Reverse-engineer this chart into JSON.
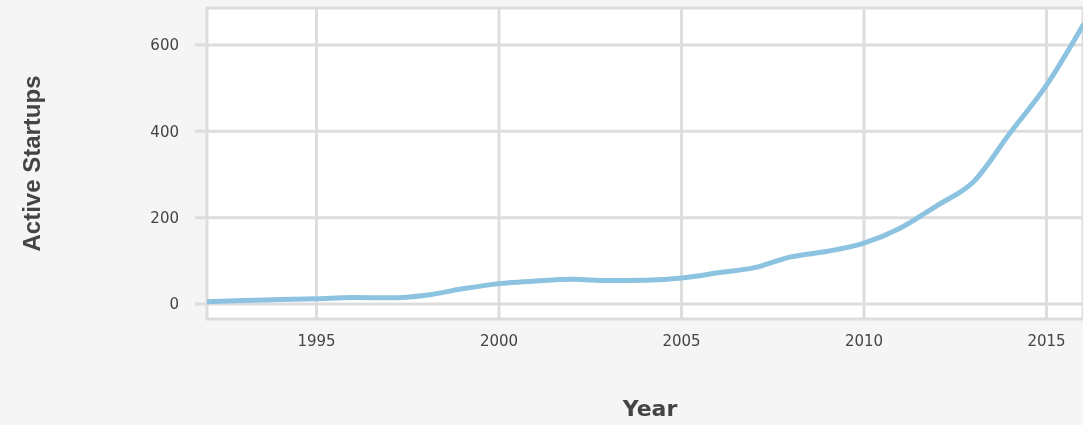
{
  "chart_data": {
    "type": "line",
    "xlabel": "Year",
    "ylabel": "Active Startups",
    "x": [
      1992,
      1993,
      1994,
      1995,
      1996,
      1997,
      1998,
      1999,
      2000,
      2001,
      2002,
      2003,
      2004,
      2005,
      2006,
      2007,
      2008,
      2009,
      2010,
      2011,
      2012,
      2013,
      2014,
      2015,
      2016
    ],
    "series": [
      {
        "color": "#8cc3e0",
        "values": [
          5,
          8,
          10,
          12,
          15,
          14,
          20,
          35,
          47,
          53,
          57,
          54,
          55,
          60,
          72,
          84,
          109,
          122,
          141,
          176,
          228,
          283,
          396,
          507,
          646
        ]
      }
    ],
    "xlim": [
      1992,
      2016
    ],
    "xticks": [
      1995,
      2000,
      2005,
      2010,
      2015
    ],
    "ylim": [
      -35,
      686
    ],
    "yticks": [
      0,
      200,
      400,
      600
    ],
    "grid": true,
    "line_style": "solid",
    "marker": "none"
  }
}
